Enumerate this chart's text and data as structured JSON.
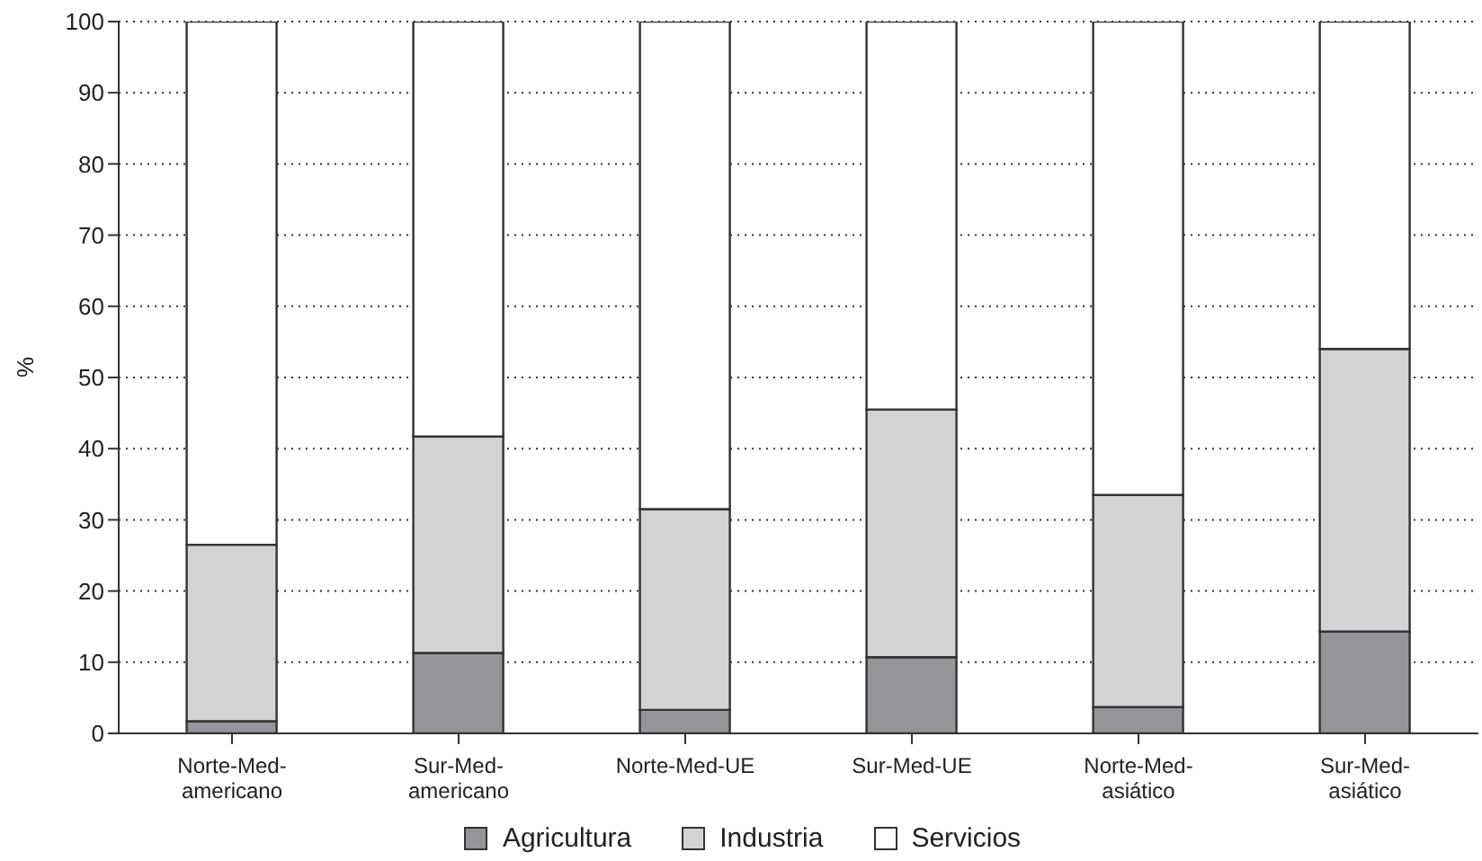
{
  "chart_data": {
    "type": "bar",
    "stacked": true,
    "ylabel": "%",
    "categories": [
      "Norte-Med-americano",
      "Sur-Med-americano",
      "Norte-Med-UE",
      "Sur-Med-UE",
      "Norte-Med-asiático",
      "Sur-Med-asiático"
    ],
    "series": [
      {
        "name": "Agricultura",
        "color": "#939598",
        "values": [
          1.7,
          11.3,
          3.3,
          10.7,
          3.7,
          14.3
        ]
      },
      {
        "name": "Industria",
        "color": "#d1d3d4",
        "values": [
          24.8,
          30.4,
          28.2,
          34.8,
          29.8,
          39.7
        ]
      },
      {
        "name": "Servicios",
        "color": "#ffffff",
        "values": [
          73.5,
          58.3,
          68.5,
          54.5,
          66.5,
          46.0
        ]
      }
    ],
    "ylim": [
      0,
      100
    ],
    "yticks": [
      0,
      10,
      20,
      30,
      40,
      50,
      60,
      70,
      80,
      90,
      100
    ],
    "grid": "y",
    "legend": "bottom"
  }
}
